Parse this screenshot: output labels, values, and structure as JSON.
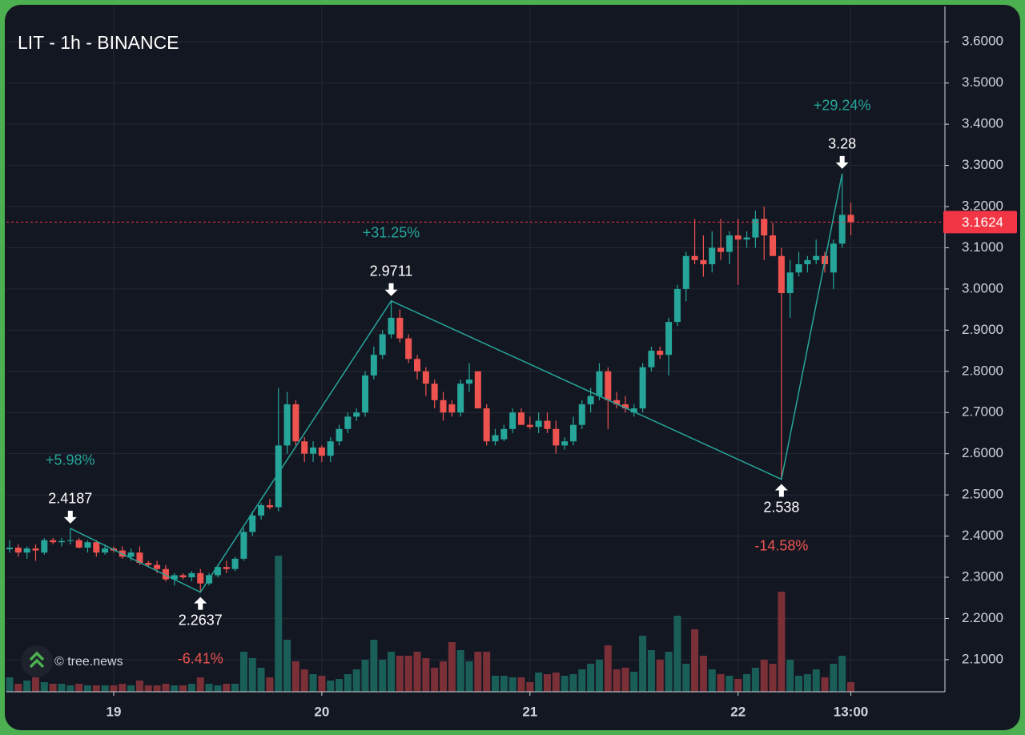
{
  "chart_data": {
    "type": "candlestick",
    "title": "LIT - 1h - BINANCE",
    "watermark": "© tree.news",
    "categories": [
      null,
      null,
      null,
      null,
      null,
      null,
      null,
      null,
      null,
      null,
      null,
      null,
      "19",
      null,
      null,
      null,
      null,
      null,
      null,
      null,
      null,
      null,
      null,
      null,
      null,
      null,
      null,
      null,
      null,
      null,
      null,
      null,
      null,
      null,
      null,
      null,
      "20",
      null,
      null,
      null,
      null,
      null,
      null,
      null,
      null,
      null,
      null,
      null,
      null,
      null,
      null,
      null,
      null,
      null,
      null,
      null,
      null,
      null,
      null,
      null,
      "21",
      null,
      null,
      null,
      null,
      null,
      null,
      null,
      null,
      null,
      null,
      null,
      null,
      null,
      null,
      null,
      null,
      null,
      null,
      null,
      null,
      null,
      null,
      null,
      "22",
      null,
      null,
      null,
      null,
      null,
      null,
      null,
      null,
      null,
      null,
      null,
      null,
      "13:00"
    ],
    "open": [
      2.368,
      2.372,
      2.36,
      2.37,
      2.36,
      2.39,
      2.385,
      2.388,
      2.39,
      2.372,
      2.385,
      2.36,
      2.37,
      2.365,
      2.35,
      2.36,
      2.335,
      2.33,
      2.32,
      2.295,
      2.305,
      2.3,
      2.31,
      2.285,
      2.305,
      2.325,
      2.32,
      2.345,
      2.41,
      2.45,
      2.475,
      2.47,
      2.62,
      2.72,
      2.63,
      2.6,
      2.615,
      2.595,
      2.63,
      2.66,
      2.69,
      2.7,
      2.79,
      2.84,
      2.89,
      2.93,
      2.88,
      2.83,
      2.8,
      2.77,
      2.73,
      2.72,
      2.7,
      2.77,
      2.8,
      2.71,
      2.63,
      2.635,
      2.66,
      2.7,
      2.67,
      2.665,
      2.68,
      2.66,
      2.62,
      2.63,
      2.67,
      2.72,
      2.74,
      2.8,
      2.73,
      2.72,
      2.7,
      2.71,
      2.81,
      2.85,
      2.84,
      2.92,
      3.0,
      3.08,
      3.07,
      3.06,
      3.1,
      3.09,
      3.13,
      3.12,
      3.125,
      3.17,
      3.13,
      3.08,
      2.99,
      3.04,
      3.06,
      3.07,
      3.08,
      3.04,
      3.11,
      3.18
    ],
    "high": [
      2.39,
      2.38,
      2.375,
      2.38,
      2.395,
      2.395,
      2.395,
      2.4187,
      2.395,
      2.39,
      2.39,
      2.38,
      2.375,
      2.375,
      2.37,
      2.375,
      2.34,
      2.34,
      2.33,
      2.31,
      2.31,
      2.315,
      2.32,
      2.31,
      2.33,
      2.34,
      2.35,
      2.42,
      2.46,
      2.48,
      2.49,
      2.76,
      2.75,
      2.73,
      2.64,
      2.63,
      2.62,
      2.64,
      2.67,
      2.7,
      2.71,
      2.8,
      2.86,
      2.9,
      2.9711,
      2.95,
      2.89,
      2.84,
      2.81,
      2.78,
      2.75,
      2.73,
      2.78,
      2.82,
      2.8,
      2.72,
      2.66,
      2.67,
      2.71,
      2.71,
      2.69,
      2.7,
      2.7,
      2.68,
      2.64,
      2.69,
      2.73,
      2.76,
      2.82,
      2.81,
      2.75,
      2.74,
      2.72,
      2.82,
      2.86,
      2.86,
      2.93,
      3.01,
      3.09,
      3.17,
      3.13,
      3.14,
      3.17,
      3.14,
      3.17,
      3.14,
      3.19,
      3.2,
      3.16,
      3.1,
      3.07,
      3.09,
      3.08,
      3.12,
      3.09,
      3.12,
      3.28,
      3.21
    ],
    "low": [
      2.36,
      2.35,
      2.345,
      2.34,
      2.355,
      2.38,
      2.375,
      2.38,
      2.37,
      2.36,
      2.35,
      2.355,
      2.36,
      2.345,
      2.34,
      2.33,
      2.325,
      2.31,
      2.29,
      2.28,
      2.295,
      2.29,
      2.2637,
      2.28,
      2.3,
      2.31,
      2.315,
      2.34,
      2.4,
      2.44,
      2.465,
      2.46,
      2.6,
      2.62,
      2.58,
      2.58,
      2.58,
      2.58,
      2.62,
      2.65,
      2.68,
      2.69,
      2.78,
      2.83,
      2.88,
      2.87,
      2.82,
      2.78,
      2.74,
      2.71,
      2.68,
      2.69,
      2.69,
      2.75,
      2.71,
      2.62,
      2.62,
      2.63,
      2.65,
      2.67,
      2.66,
      2.65,
      2.65,
      2.6,
      2.61,
      2.62,
      2.66,
      2.7,
      2.73,
      2.66,
      2.71,
      2.7,
      2.69,
      2.7,
      2.8,
      2.83,
      2.79,
      2.91,
      2.97,
      3.06,
      3.03,
      3.04,
      3.07,
      3.06,
      3.01,
      3.1,
      3.1,
      3.07,
      3.08,
      2.538,
      2.93,
      3.03,
      3.04,
      3.06,
      3.04,
      3.0,
      3.1,
      3.13
    ],
    "close": [
      2.372,
      2.36,
      2.37,
      2.365,
      2.39,
      2.385,
      2.388,
      2.39,
      2.372,
      2.385,
      2.36,
      2.37,
      2.365,
      2.35,
      2.36,
      2.335,
      2.33,
      2.32,
      2.295,
      2.305,
      2.3,
      2.31,
      2.285,
      2.305,
      2.325,
      2.32,
      2.345,
      2.41,
      2.45,
      2.475,
      2.47,
      2.62,
      2.72,
      2.63,
      2.6,
      2.615,
      2.595,
      2.63,
      2.66,
      2.69,
      2.7,
      2.79,
      2.84,
      2.89,
      2.93,
      2.88,
      2.83,
      2.8,
      2.77,
      2.73,
      2.7,
      2.7,
      2.77,
      2.78,
      2.71,
      2.63,
      2.645,
      2.66,
      2.7,
      2.67,
      2.665,
      2.68,
      2.66,
      2.62,
      2.63,
      2.67,
      2.72,
      2.74,
      2.8,
      2.73,
      2.72,
      2.71,
      2.71,
      2.81,
      2.85,
      2.84,
      2.92,
      3.0,
      3.08,
      3.07,
      3.06,
      3.1,
      3.09,
      3.13,
      3.12,
      3.125,
      3.17,
      3.13,
      3.08,
      2.99,
      3.04,
      3.06,
      3.07,
      3.08,
      3.06,
      3.11,
      3.18,
      3.1624
    ],
    "volume": [
      18,
      10,
      14,
      18,
      12,
      10,
      10,
      8,
      10,
      8,
      8,
      8,
      8,
      10,
      8,
      14,
      8,
      8,
      10,
      8,
      8,
      10,
      18,
      10,
      8,
      10,
      10,
      50,
      42,
      30,
      18,
      170,
      65,
      38,
      28,
      22,
      20,
      14,
      16,
      22,
      28,
      40,
      65,
      40,
      50,
      45,
      45,
      50,
      42,
      30,
      38,
      62,
      52,
      38,
      50,
      50,
      20,
      20,
      18,
      18,
      12,
      24,
      22,
      24,
      20,
      22,
      28,
      35,
      40,
      58,
      28,
      30,
      25,
      70,
      52,
      40,
      50,
      95,
      35,
      78,
      45,
      28,
      22,
      20,
      16,
      22,
      30,
      40,
      35,
      125,
      40,
      20,
      22,
      28,
      18,
      35,
      45,
      12
    ],
    "up_color": "#26a69a",
    "down_color": "#ef5350",
    "volume_up_color": "#1a5e58",
    "volume_down_color": "#7b2f37",
    "pivots": {
      "values": [
        2.4187,
        2.2637,
        2.9711,
        2.538,
        3.28
      ],
      "changes": [
        5.98,
        -6.41,
        31.25,
        -14.58,
        29.24
      ],
      "change_labels": [
        "+5.98%",
        "-6.41%",
        "+31.25%",
        "-14.58%",
        "+29.24%"
      ],
      "color": "#26a69a"
    },
    "last_price": 3.1624,
    "last_price_color": "#f23645",
    "ylim": [
      2.022,
      3.686
    ],
    "yticks": [
      {
        "value": 2.1,
        "label": "2.1000"
      },
      {
        "value": 2.2,
        "label": "2.2000"
      },
      {
        "value": 2.3,
        "label": "2.3000"
      },
      {
        "value": 2.4,
        "label": "2.4000"
      },
      {
        "value": 2.5,
        "label": "2.5000"
      },
      {
        "value": 2.6,
        "label": "2.6000"
      },
      {
        "value": 2.7,
        "label": "2.7000"
      },
      {
        "value": 2.8,
        "label": "2.8000"
      },
      {
        "value": 2.9,
        "label": "2.9000"
      },
      {
        "value": 3.0,
        "label": "3.0000"
      },
      {
        "value": 3.1,
        "label": "3.1000"
      },
      {
        "value": 3.2,
        "label": "3.2000"
      },
      {
        "value": 3.3,
        "label": "3.3000"
      },
      {
        "value": 3.4,
        "label": "3.4000"
      },
      {
        "value": 3.5,
        "label": "3.5000"
      },
      {
        "value": 3.6,
        "label": "3.6000"
      }
    ],
    "grid": true
  }
}
